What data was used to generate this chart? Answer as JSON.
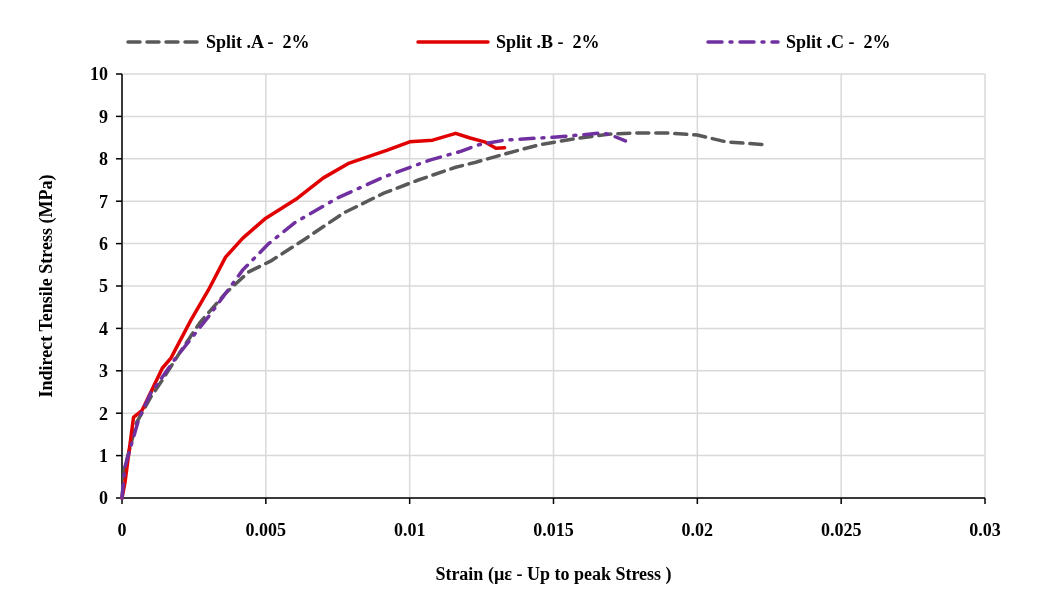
{
  "chart_data": {
    "type": "line",
    "xlabel": "Strain (µε - Up to peak Stress )",
    "ylabel": "Indirect Tensile Stress (MPa)",
    "xlim": [
      0,
      0.03
    ],
    "xticks": [
      0,
      0.005,
      0.01,
      0.015,
      0.02,
      0.025,
      0.03
    ],
    "ylim": [
      0,
      10
    ],
    "yticks": [
      0,
      1,
      2,
      3,
      4,
      5,
      6,
      7,
      8,
      9,
      10
    ],
    "grid": true,
    "legend": "top",
    "series": [
      {
        "name": "Split .A -  2%",
        "color": "#595959",
        "line_style": "dashed",
        "x": [
          0,
          0.0001,
          0.0005,
          0.001,
          0.0014,
          0.002,
          0.0027,
          0.0036,
          0.0044,
          0.0052,
          0.0063,
          0.0077,
          0.0091,
          0.0103,
          0.0116,
          0.0123,
          0.0134,
          0.0145,
          0.0157,
          0.0169,
          0.0178,
          0.0189,
          0.02,
          0.021,
          0.0224
        ],
        "values": [
          0,
          0.73,
          1.77,
          2.38,
          2.78,
          3.42,
          4.13,
          4.83,
          5.33,
          5.6,
          6.08,
          6.72,
          7.19,
          7.5,
          7.8,
          7.92,
          8.13,
          8.33,
          8.47,
          8.58,
          8.61,
          8.61,
          8.56,
          8.4,
          8.33
        ]
      },
      {
        "name": "Split .B -  2%",
        "color": "#e00000",
        "line_style": "solid",
        "x": [
          0,
          0.0001,
          0.0004,
          0.0007,
          0.0009,
          0.0014,
          0.0017,
          0.0024,
          0.003,
          0.0036,
          0.0042,
          0.005,
          0.0061,
          0.007,
          0.0079,
          0.0092,
          0.01,
          0.0108,
          0.0116,
          0.0121,
          0.0126,
          0.013,
          0.0133
        ],
        "values": [
          0,
          0.35,
          1.9,
          2.07,
          2.35,
          3.06,
          3.3,
          4.2,
          4.9,
          5.68,
          6.13,
          6.6,
          7.07,
          7.55,
          7.9,
          8.2,
          8.4,
          8.44,
          8.6,
          8.49,
          8.4,
          8.25,
          8.26
        ]
      },
      {
        "name": "Split .C -  2%",
        "color": "#7030a0",
        "line_style": "dashdot",
        "x": [
          0,
          0.0001,
          0.0006,
          0.001,
          0.0019,
          0.003,
          0.0042,
          0.0051,
          0.006,
          0.0075,
          0.0091,
          0.0107,
          0.0118,
          0.0124,
          0.0133,
          0.015,
          0.0159,
          0.0167,
          0.017,
          0.0175
        ],
        "values": [
          0,
          0.73,
          1.9,
          2.47,
          3.33,
          4.27,
          5.38,
          6.0,
          6.49,
          7.08,
          7.57,
          7.97,
          8.18,
          8.33,
          8.44,
          8.51,
          8.56,
          8.61,
          8.56,
          8.42
        ]
      }
    ]
  }
}
